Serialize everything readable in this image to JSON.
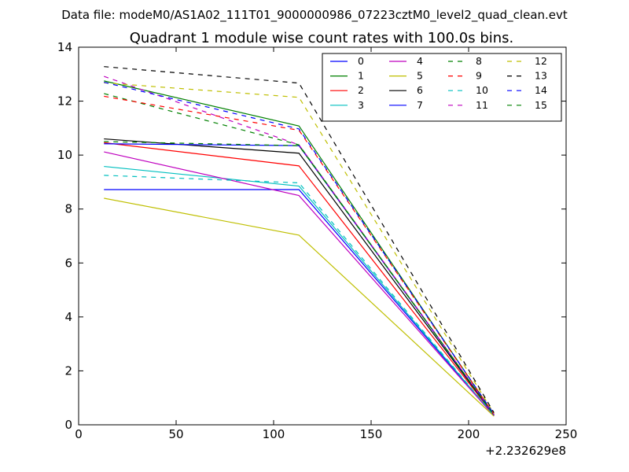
{
  "suptitle": "Data file: modeM0/AS1A02_111T01_9000000986_07223cztM0_level2_quad_clean.evt",
  "chart_data": {
    "type": "line",
    "title": "Quadrant 1 module wise count rates with 100.0s bins.",
    "xlabel": "",
    "ylabel": "",
    "x_offset_label": "+2.232629e8",
    "xlim": [
      0,
      250
    ],
    "ylim": [
      0,
      14
    ],
    "x_ticks": [
      0,
      50,
      100,
      150,
      200,
      250
    ],
    "y_ticks": [
      0,
      2,
      4,
      6,
      8,
      10,
      12,
      14
    ],
    "grid": false,
    "legend_position": "top-right",
    "legend_columns": 4,
    "x": [
      13,
      113,
      213
    ],
    "series": [
      {
        "name": "0",
        "color": "#0000ff",
        "dash": "solid",
        "values": [
          8.72,
          8.72,
          0.33
        ]
      },
      {
        "name": "1",
        "color": "#008000",
        "dash": "solid",
        "values": [
          12.75,
          11.08,
          0.38
        ]
      },
      {
        "name": "2",
        "color": "#ff0000",
        "dash": "solid",
        "values": [
          10.46,
          9.6,
          0.36
        ]
      },
      {
        "name": "3",
        "color": "#00bfbf",
        "dash": "solid",
        "values": [
          9.58,
          8.85,
          0.34
        ]
      },
      {
        "name": "4",
        "color": "#bf00bf",
        "dash": "solid",
        "values": [
          10.12,
          8.5,
          0.33
        ]
      },
      {
        "name": "5",
        "color": "#bfbf00",
        "dash": "solid",
        "values": [
          8.4,
          7.03,
          0.32
        ]
      },
      {
        "name": "6",
        "color": "#000000",
        "dash": "solid",
        "values": [
          10.6,
          10.07,
          0.36
        ]
      },
      {
        "name": "7",
        "color": "#0000ff",
        "dash": "solid",
        "values": [
          10.42,
          10.35,
          0.36
        ]
      },
      {
        "name": "8",
        "color": "#008000",
        "dash": "dashed",
        "values": [
          12.28,
          10.38,
          0.37
        ]
      },
      {
        "name": "9",
        "color": "#ff0000",
        "dash": "dashed",
        "values": [
          12.18,
          10.92,
          0.39
        ]
      },
      {
        "name": "10",
        "color": "#00bfbf",
        "dash": "dashed",
        "values": [
          9.25,
          8.97,
          0.35
        ]
      },
      {
        "name": "11",
        "color": "#bf00bf",
        "dash": "dashed",
        "values": [
          12.92,
          10.38,
          0.38
        ]
      },
      {
        "name": "12",
        "color": "#bfbf00",
        "dash": "dashed",
        "values": [
          12.68,
          12.14,
          0.42
        ]
      },
      {
        "name": "13",
        "color": "#000000",
        "dash": "dashed",
        "values": [
          13.28,
          12.67,
          0.45
        ]
      },
      {
        "name": "14",
        "color": "#0000ff",
        "dash": "dashed",
        "values": [
          12.7,
          10.97,
          0.4
        ]
      },
      {
        "name": "15",
        "color": "#008000",
        "dash": "dashed",
        "values": [
          10.5,
          10.35,
          0.36
        ]
      }
    ]
  }
}
